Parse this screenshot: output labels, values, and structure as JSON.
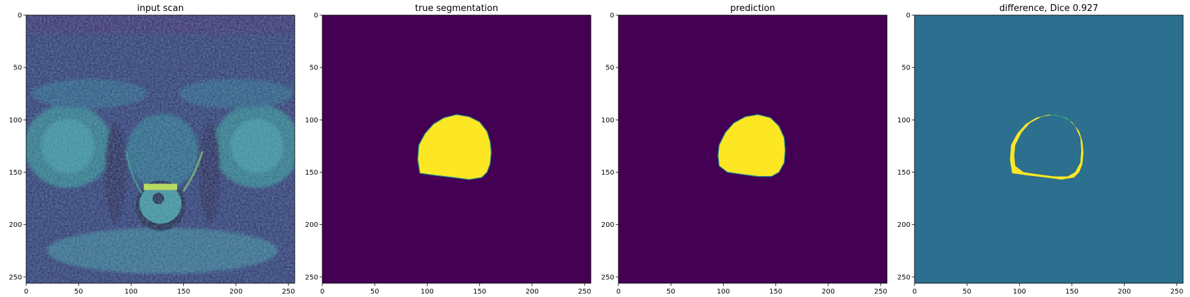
{
  "colors": {
    "viridis_low": "#440154",
    "viridis_mid": "#2c6f8e",
    "viridis_high": "#fde725",
    "scan_dark": "#2e2c6e",
    "scan_mid": "#2a8f8a",
    "scan_bright": "#7ccf5b",
    "scan_highlight": "#c8e23c"
  },
  "chart_data": [
    {
      "type": "heatmap",
      "title": "input scan",
      "image_size": [
        256,
        256
      ],
      "xlim": [
        0,
        256
      ],
      "ylim": [
        256,
        0
      ],
      "x_ticks": [
        0,
        50,
        100,
        150,
        200,
        250
      ],
      "y_ticks": [
        0,
        50,
        100,
        150,
        200,
        250
      ],
      "content": "mri"
    },
    {
      "type": "heatmap",
      "title": "true segmentation",
      "image_size": [
        256,
        256
      ],
      "xlim": [
        0,
        256
      ],
      "ylim": [
        256,
        0
      ],
      "x_ticks": [
        0,
        50,
        100,
        150,
        200,
        250
      ],
      "y_ticks": [
        0,
        50,
        100,
        150,
        200,
        250
      ],
      "content": "mask",
      "mask_outline": [
        [
          92,
          124
        ],
        [
          98,
          113
        ],
        [
          106,
          104
        ],
        [
          116,
          98
        ],
        [
          128,
          95
        ],
        [
          140,
          97
        ],
        [
          150,
          102
        ],
        [
          157,
          111
        ],
        [
          160,
          121
        ],
        [
          161,
          131
        ],
        [
          160,
          142
        ],
        [
          157,
          150
        ],
        [
          152,
          155
        ],
        [
          140,
          157
        ],
        [
          125,
          155
        ],
        [
          108,
          153
        ],
        [
          93,
          151
        ],
        [
          91,
          138
        ]
      ]
    },
    {
      "type": "heatmap",
      "title": "prediction",
      "image_size": [
        256,
        256
      ],
      "xlim": [
        0,
        256
      ],
      "ylim": [
        256,
        0
      ],
      "x_ticks": [
        0,
        50,
        100,
        150,
        200,
        250
      ],
      "y_ticks": [
        0,
        50,
        100,
        150,
        200,
        250
      ],
      "content": "mask",
      "mask_outline": [
        [
          96,
          124
        ],
        [
          102,
          112
        ],
        [
          110,
          103
        ],
        [
          121,
          97
        ],
        [
          133,
          95
        ],
        [
          145,
          98
        ],
        [
          153,
          106
        ],
        [
          158,
          117
        ],
        [
          159,
          129
        ],
        [
          158,
          141
        ],
        [
          153,
          150
        ],
        [
          146,
          154
        ],
        [
          133,
          154
        ],
        [
          118,
          152
        ],
        [
          104,
          150
        ],
        [
          96,
          144
        ],
        [
          95,
          134
        ]
      ]
    },
    {
      "type": "heatmap",
      "title": "difference, Dice 0.927",
      "image_size": [
        256,
        256
      ],
      "xlim": [
        0,
        256
      ],
      "ylim": [
        256,
        0
      ],
      "x_ticks": [
        0,
        50,
        100,
        150,
        200,
        250
      ],
      "y_ticks": [
        0,
        50,
        100,
        150,
        200,
        250
      ],
      "content": "difference",
      "dice": 0.927
    }
  ]
}
